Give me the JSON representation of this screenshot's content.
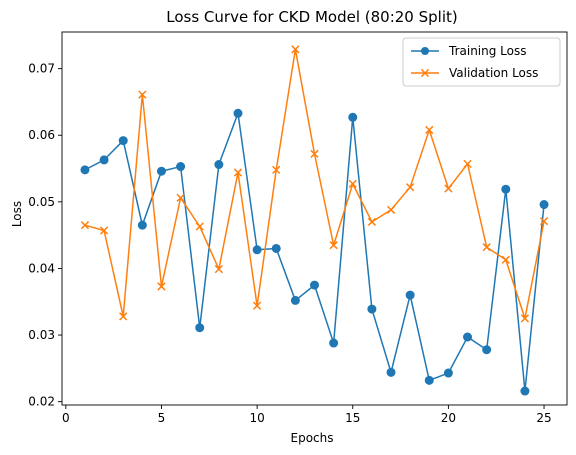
{
  "chart_data": {
    "type": "line",
    "title": "Loss Curve for CKD Model (80:20 Split)",
    "xlabel": "Epochs",
    "ylabel": "Loss",
    "xlim": [
      -0.2,
      26.2
    ],
    "ylim": [
      0.0195,
      0.0755
    ],
    "xticks": [
      0,
      5,
      10,
      15,
      20,
      25
    ],
    "yticks": [
      0.02,
      0.03,
      0.04,
      0.05,
      0.06,
      0.07
    ],
    "ytick_labels": [
      "0.02",
      "0.03",
      "0.04",
      "0.05",
      "0.06",
      "0.07"
    ],
    "grid": false,
    "legend_position": "top-right",
    "x": [
      1,
      2,
      3,
      4,
      5,
      6,
      7,
      8,
      9,
      10,
      11,
      12,
      13,
      14,
      15,
      16,
      17,
      18,
      19,
      20,
      21,
      22,
      23,
      24,
      25
    ],
    "series": [
      {
        "name": "Training Loss",
        "color": "#1f77b4",
        "marker": "circle",
        "values": [
          0.0548,
          0.0563,
          0.0592,
          0.0465,
          0.0546,
          0.0553,
          0.0311,
          0.0556,
          0.0633,
          0.0428,
          0.043,
          0.0352,
          0.0375,
          0.0288,
          0.0627,
          0.0339,
          0.0244,
          0.036,
          0.0232,
          0.0243,
          0.0297,
          0.0278,
          0.0519,
          0.0216,
          0.0496
        ]
      },
      {
        "name": "Validation Loss",
        "color": "#ff7f0e",
        "marker": "x",
        "values": [
          0.0465,
          0.0457,
          0.0328,
          0.0661,
          0.0373,
          0.0506,
          0.0463,
          0.0399,
          0.0544,
          0.0344,
          0.0548,
          0.0729,
          0.0572,
          0.0435,
          0.0527,
          0.047,
          0.0488,
          0.0522,
          0.0608,
          0.052,
          0.0557,
          0.0432,
          0.0413,
          0.0325,
          0.0471
        ]
      }
    ]
  }
}
